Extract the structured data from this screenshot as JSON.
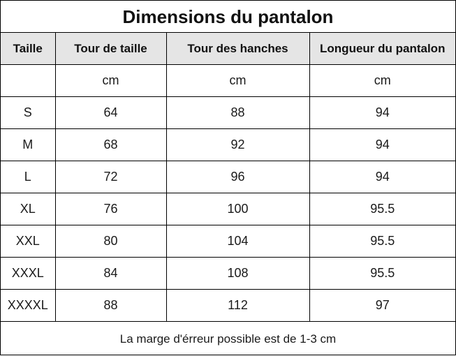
{
  "title": "Dimensions du pantalon",
  "headers": [
    "Taille",
    "Tour de taille",
    "Tour des hanches",
    "Longueur du pantalon"
  ],
  "rows": [
    [
      "",
      "cm",
      "cm",
      "cm"
    ],
    [
      "S",
      "64",
      "88",
      "94"
    ],
    [
      "M",
      "68",
      "92",
      "94"
    ],
    [
      "L",
      "72",
      "96",
      "94"
    ],
    [
      "XL",
      "76",
      "100",
      "95.5"
    ],
    [
      "XXL",
      "80",
      "104",
      "95.5"
    ],
    [
      "XXXL",
      "84",
      "108",
      "95.5"
    ],
    [
      "XXXXL",
      "88",
      "112",
      "97"
    ]
  ],
  "footnote": "La marge d'érreur possible est de 1-3 cm",
  "colors": {
    "border": "#000000",
    "header_background": "#e5e5e5",
    "background": "#ffffff",
    "text": "#1a1a1a"
  }
}
